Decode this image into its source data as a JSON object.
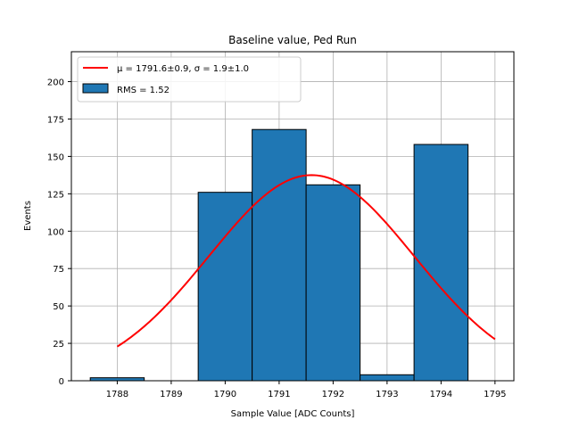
{
  "chart_data": {
    "type": "bar",
    "title": "Baseline value, Ped Run",
    "xlabel": "Sample Value [ADC Counts]",
    "ylabel": "Events",
    "xlim": [
      1787.15,
      1795.35
    ],
    "ylim": [
      0,
      220
    ],
    "grid": true,
    "legend_position": "top-left",
    "xticks": [
      1788,
      1789,
      1790,
      1791,
      1792,
      1793,
      1794,
      1795
    ],
    "yticks": [
      0,
      25,
      50,
      75,
      100,
      125,
      150,
      175,
      200
    ],
    "histogram": {
      "name": "RMS = 1.52",
      "bin_edges": [
        1787.5,
        1788.5,
        1789.5,
        1790.5,
        1791.5,
        1792.5,
        1793.5,
        1794.5
      ],
      "counts": [
        2,
        0,
        126,
        168,
        131,
        4,
        158
      ],
      "color": "#1f77b4",
      "edgecolor": "#000000"
    },
    "fit": {
      "name": "μ = 1791.6±0.9, σ = 1.9±1.0",
      "type": "gaussian",
      "x_range": [
        1788,
        1795
      ],
      "mu": 1791.6,
      "sigma": 1.9,
      "amplitude": 137.5,
      "color": "#ff0000"
    }
  }
}
